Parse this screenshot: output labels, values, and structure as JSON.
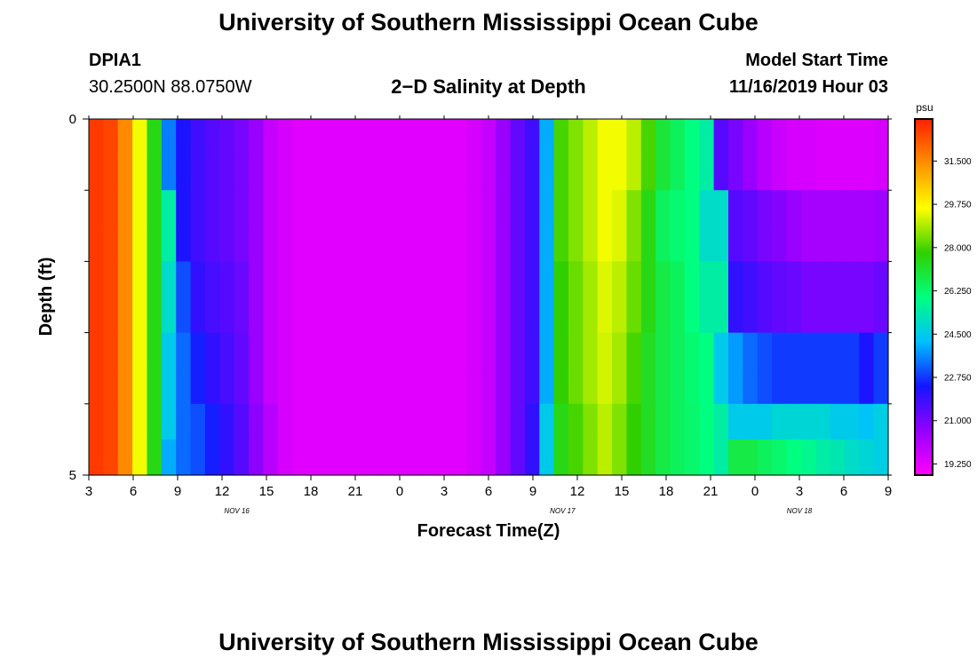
{
  "header": {
    "title": "University of Southern Mississippi Ocean Cube",
    "station": "DPIA1",
    "coords": "30.2500N 88.0750W",
    "subtitle": "2−D Salinity at Depth",
    "model_start_label": "Model Start Time",
    "model_start_value": "11/16/2019 Hour 03"
  },
  "footer": {
    "title": "University of Southern Mississippi Ocean Cube"
  },
  "colors": {
    "colormap": [
      "#ff00ff",
      "#9400ff",
      "#1515ff",
      "#00c0ff",
      "#00ff80",
      "#30d000",
      "#ffff00",
      "#ff9000",
      "#ff2000"
    ]
  },
  "chart_data": {
    "type": "heatmap",
    "xlabel": "Forecast Time(Z)",
    "ylabel": "Depth (ft)",
    "x_tick_labels": [
      "3",
      "6",
      "9",
      "12",
      "15",
      "18",
      "21",
      "0",
      "3",
      "6",
      "9",
      "12",
      "15",
      "18",
      "21",
      "0",
      "3",
      "6",
      "9"
    ],
    "date_labels": [
      {
        "label": "NOV 16",
        "hour_index": 10
      },
      {
        "label": "NOV 17",
        "hour_index": 32
      },
      {
        "label": "NOV 18",
        "hour_index": 48
      }
    ],
    "y_tick_labels": [
      "0",
      "5"
    ],
    "depth_range": [
      0,
      5
    ],
    "forecast_hours": 55,
    "depth_levels": [
      0.25,
      0.75,
      1.25,
      1.75,
      2.25,
      2.75,
      3.25,
      3.75,
      4.25,
      4.75
    ],
    "colorbar": {
      "unit": "psu",
      "vmin": 18.8,
      "vmax": 33.2,
      "tick_values": [
        19.25,
        21,
        22.75,
        24.5,
        26.25,
        28,
        29.75,
        31.5
      ],
      "tick_labels": [
        "19.250",
        "21.000",
        "22.750",
        "24.500",
        "26.250",
        "28.000",
        "29.750",
        "31.500"
      ]
    },
    "salinity_psu": [
      [
        32.8,
        32.6,
        31.5,
        29.5,
        27.5,
        23.5,
        22.3,
        21.8,
        21.5,
        21.3,
        21.0,
        20.5,
        19.8,
        19.5,
        19.3,
        19.3,
        19.3,
        19.3,
        19.3,
        19.3,
        19.3,
        19.3,
        19.3,
        19.3,
        19.3,
        19.3,
        19.5,
        19.8,
        20.5,
        21.3,
        21.8,
        24.0,
        28.0,
        28.5,
        29.0,
        29.5,
        29.5,
        29.0,
        28.0,
        27.0,
        26.5,
        26.0,
        25.5,
        21.5,
        21.0,
        20.5,
        20.0,
        19.7,
        19.5,
        19.5,
        19.4,
        19.4,
        19.4,
        19.4,
        19.5
      ],
      [
        32.8,
        32.6,
        31.5,
        29.5,
        27.5,
        23.5,
        22.3,
        21.8,
        21.5,
        21.3,
        21.0,
        20.5,
        19.8,
        19.5,
        19.3,
        19.3,
        19.3,
        19.3,
        19.3,
        19.3,
        19.3,
        19.3,
        19.3,
        19.3,
        19.3,
        19.3,
        19.5,
        19.8,
        20.5,
        21.3,
        21.8,
        24.0,
        28.0,
        28.5,
        29.0,
        29.5,
        29.5,
        29.0,
        28.0,
        27.0,
        26.5,
        26.0,
        25.5,
        21.5,
        21.0,
        20.5,
        20.0,
        19.7,
        19.5,
        19.5,
        19.4,
        19.4,
        19.4,
        19.4,
        19.5
      ],
      [
        32.8,
        32.6,
        31.5,
        29.5,
        27.5,
        25.5,
        22.3,
        21.8,
        21.5,
        21.3,
        21.0,
        20.5,
        19.8,
        19.5,
        19.3,
        19.3,
        19.3,
        19.3,
        19.3,
        19.3,
        19.3,
        19.3,
        19.3,
        19.3,
        19.3,
        19.3,
        19.5,
        19.8,
        20.5,
        21.3,
        21.8,
        24.0,
        28.0,
        28.5,
        29.0,
        29.5,
        29.3,
        28.5,
        27.5,
        26.5,
        26.2,
        26.0,
        25.0,
        25.0,
        21.5,
        21.3,
        21.0,
        20.8,
        20.5,
        20.3,
        20.3,
        20.3,
        20.3,
        20.3,
        20.4
      ],
      [
        32.8,
        32.6,
        31.5,
        29.5,
        27.5,
        25.5,
        22.3,
        21.8,
        21.5,
        21.3,
        21.0,
        20.5,
        19.8,
        19.5,
        19.3,
        19.3,
        19.3,
        19.3,
        19.3,
        19.3,
        19.3,
        19.3,
        19.3,
        19.3,
        19.3,
        19.3,
        19.5,
        19.8,
        20.5,
        21.3,
        21.8,
        24.0,
        28.0,
        28.5,
        29.0,
        29.5,
        29.3,
        28.5,
        27.5,
        26.5,
        26.2,
        26.0,
        25.0,
        25.0,
        21.5,
        21.3,
        21.0,
        20.8,
        20.5,
        20.3,
        20.3,
        20.3,
        20.3,
        20.3,
        20.4
      ],
      [
        32.8,
        32.6,
        31.5,
        29.5,
        27.5,
        25.0,
        23.0,
        22.0,
        21.7,
        21.5,
        21.2,
        20.5,
        19.8,
        19.5,
        19.3,
        19.3,
        19.3,
        19.3,
        19.3,
        19.3,
        19.3,
        19.3,
        19.3,
        19.3,
        19.3,
        19.3,
        19.5,
        19.8,
        20.5,
        21.3,
        21.8,
        24.0,
        27.8,
        28.3,
        28.8,
        29.3,
        29.0,
        28.3,
        27.5,
        26.8,
        26.5,
        26.0,
        25.5,
        25.5,
        22.0,
        21.8,
        21.5,
        21.3,
        21.2,
        21.0,
        21.0,
        21.0,
        21.0,
        21.0,
        21.2
      ],
      [
        32.8,
        32.6,
        31.5,
        29.5,
        27.5,
        25.0,
        23.0,
        22.0,
        21.7,
        21.5,
        21.2,
        20.5,
        19.8,
        19.5,
        19.3,
        19.3,
        19.3,
        19.3,
        19.3,
        19.3,
        19.3,
        19.3,
        19.3,
        19.3,
        19.3,
        19.3,
        19.5,
        19.8,
        20.5,
        21.3,
        21.8,
        24.0,
        27.8,
        28.3,
        28.8,
        29.3,
        29.0,
        28.3,
        27.5,
        26.8,
        26.5,
        26.0,
        25.5,
        25.5,
        22.0,
        21.8,
        21.5,
        21.3,
        21.2,
        21.0,
        21.0,
        21.0,
        21.0,
        21.0,
        21.2
      ],
      [
        32.8,
        32.6,
        31.5,
        29.5,
        27.5,
        24.5,
        23.3,
        22.5,
        22.0,
        21.7,
        21.3,
        20.5,
        19.8,
        19.5,
        19.3,
        19.3,
        19.3,
        19.3,
        19.3,
        19.3,
        19.3,
        19.3,
        19.3,
        19.3,
        19.3,
        19.3,
        19.5,
        19.8,
        20.5,
        21.3,
        21.8,
        24.0,
        27.8,
        28.3,
        28.8,
        29.2,
        28.8,
        28.0,
        27.3,
        26.8,
        26.5,
        26.2,
        26.0,
        24.5,
        23.8,
        23.3,
        23.0,
        22.8,
        22.8,
        22.8,
        22.8,
        22.8,
        22.8,
        22.3,
        22.8
      ],
      [
        32.8,
        32.6,
        31.5,
        29.5,
        27.5,
        24.5,
        23.3,
        22.5,
        22.0,
        21.7,
        21.3,
        20.5,
        19.8,
        19.5,
        19.3,
        19.3,
        19.3,
        19.3,
        19.3,
        19.3,
        19.3,
        19.3,
        19.3,
        19.3,
        19.3,
        19.3,
        19.5,
        19.8,
        20.5,
        21.3,
        21.8,
        24.0,
        27.8,
        28.3,
        28.8,
        29.2,
        28.8,
        28.0,
        27.3,
        26.8,
        26.5,
        26.2,
        26.0,
        24.5,
        23.8,
        23.3,
        23.0,
        22.8,
        22.8,
        22.8,
        22.8,
        22.8,
        22.8,
        22.3,
        22.8
      ],
      [
        32.8,
        32.6,
        31.5,
        29.5,
        27.5,
        24.5,
        23.3,
        23.0,
        22.5,
        22.0,
        21.5,
        20.7,
        20.0,
        19.5,
        19.3,
        19.3,
        19.3,
        19.3,
        19.3,
        19.3,
        19.3,
        19.3,
        19.3,
        19.3,
        19.3,
        19.3,
        19.5,
        19.8,
        20.5,
        21.3,
        22.0,
        24.5,
        27.5,
        28.0,
        28.5,
        29.0,
        28.5,
        27.8,
        27.3,
        26.8,
        26.5,
        26.3,
        26.0,
        25.5,
        24.5,
        24.5,
        24.5,
        24.8,
        24.8,
        24.8,
        24.8,
        24.5,
        24.5,
        24.3,
        24.6
      ],
      [
        32.8,
        32.6,
        31.5,
        29.5,
        27.5,
        24.0,
        23.3,
        23.0,
        22.5,
        22.0,
        21.5,
        20.7,
        20.0,
        19.5,
        19.3,
        19.3,
        19.3,
        19.3,
        19.3,
        19.3,
        19.3,
        19.3,
        19.3,
        19.3,
        19.3,
        19.3,
        19.5,
        19.8,
        20.5,
        21.3,
        22.0,
        24.5,
        27.5,
        28.0,
        28.5,
        29.0,
        28.5,
        27.8,
        27.3,
        26.8,
        26.5,
        26.3,
        26.0,
        25.5,
        26.8,
        26.8,
        26.5,
        26.3,
        26.0,
        25.8,
        25.5,
        25.3,
        25.0,
        24.8,
        24.6
      ]
    ]
  }
}
